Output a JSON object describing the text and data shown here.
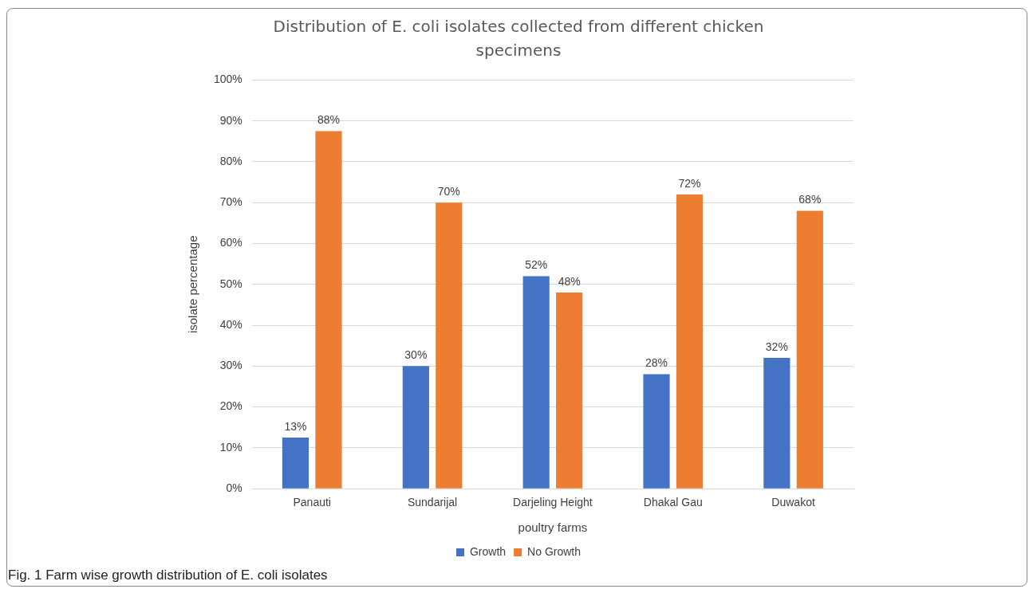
{
  "chart_data": {
    "type": "bar",
    "title": "Distribution of E. coli isolates collected from different chicken specimens",
    "categories": [
      "Panauti",
      "Sundarijal",
      "Darjeling Height",
      "Dhakal Gau",
      "Duwakot"
    ],
    "series": [
      {
        "name": "Growth",
        "color": "#4472c4",
        "values": [
          12.5,
          30,
          52,
          28,
          32
        ],
        "value_labels": [
          "13%",
          "30%",
          "52%",
          "28%",
          "32%"
        ]
      },
      {
        "name": "No Growth",
        "color": "#ed7d31",
        "values": [
          87.5,
          70,
          48,
          72,
          68
        ],
        "value_labels": [
          "88%",
          "70%",
          "48%",
          "72%",
          "68%"
        ]
      }
    ],
    "xlabel": "poultry farms",
    "ylabel": "isolate percentage",
    "ylim": [
      0,
      100
    ],
    "yticks": [
      {
        "value": 0,
        "label": "0%"
      },
      {
        "value": 10,
        "label": "10%"
      },
      {
        "value": 20,
        "label": "20%"
      },
      {
        "value": 30,
        "label": "30%"
      },
      {
        "value": 40,
        "label": "40%"
      },
      {
        "value": 50,
        "label": "50%"
      },
      {
        "value": 60,
        "label": "60%"
      },
      {
        "value": 70,
        "label": "70%"
      },
      {
        "value": 80,
        "label": "80%"
      },
      {
        "value": 90,
        "label": "90%"
      },
      {
        "value": 100,
        "label": "100%"
      }
    ],
    "grid": "y",
    "legend": "bottom",
    "annotations": [
      "Fig. 1 Farm wise growth distribution of E. coli isolates"
    ]
  }
}
